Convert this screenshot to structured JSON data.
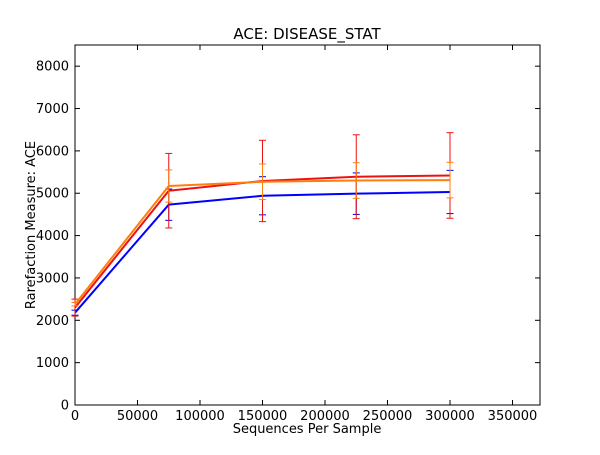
{
  "chart_data": {
    "type": "line",
    "title": "ACE: DISEASE_STAT",
    "xlabel": "Sequences Per Sample",
    "ylabel": "Rarefaction Measure: ACE",
    "xlim": [
      0,
      372000
    ],
    "ylim": [
      0,
      8500
    ],
    "xticks": [
      0,
      50000,
      100000,
      150000,
      200000,
      250000,
      300000,
      350000
    ],
    "xtick_labels": [
      "0",
      "50000",
      "100000",
      "150000",
      "200000",
      "250000",
      "300000",
      "350000"
    ],
    "yticks": [
      0,
      1000,
      2000,
      3000,
      4000,
      5000,
      6000,
      7000,
      8000
    ],
    "ytick_labels": [
      "0",
      "1000",
      "2000",
      "3000",
      "4000",
      "5000",
      "6000",
      "7000",
      "8000"
    ],
    "grid": false,
    "x": [
      10,
      75000,
      150000,
      225000,
      300000
    ],
    "series": [
      {
        "color": "#0000ff",
        "values": [
          2180,
          4730,
          4940,
          4990,
          5030
        ],
        "errors": [
          60,
          370,
          450,
          490,
          510
        ]
      },
      {
        "color": "#ee1111",
        "values": [
          2300,
          5060,
          5290,
          5390,
          5420
        ],
        "errors": [
          200,
          880,
          960,
          990,
          1010
        ]
      },
      {
        "color": "#ff7f0e",
        "values": [
          2380,
          5170,
          5270,
          5300,
          5310
        ],
        "errors": [
          40,
          380,
          420,
          420,
          420
        ]
      }
    ]
  }
}
